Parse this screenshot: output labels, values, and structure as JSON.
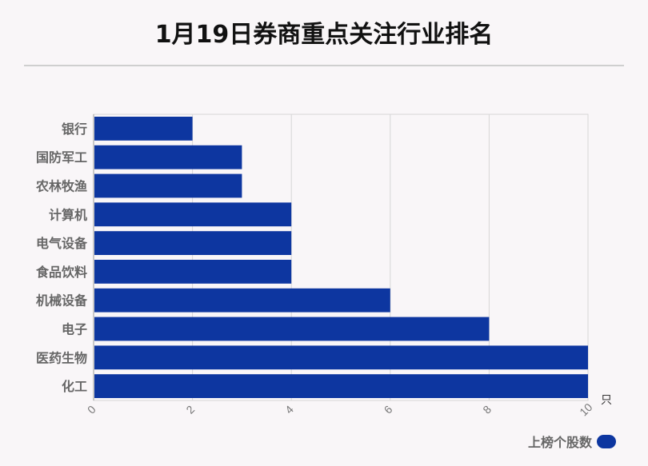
{
  "title": "1月19日券商重点关注行业排名",
  "chart_data": {
    "type": "bar",
    "orientation": "horizontal",
    "categories": [
      "银行",
      "国防军工",
      "农林牧渔",
      "计算机",
      "电气设备",
      "食品饮料",
      "机械设备",
      "电子",
      "医药生物",
      "化工"
    ],
    "series": [
      {
        "name": "上榜个股数",
        "values": [
          2,
          3,
          3,
          4,
          4,
          4,
          6,
          8,
          10,
          10
        ]
      }
    ],
    "xlim": [
      0,
      10
    ],
    "xticks": [
      "0",
      "2",
      "4",
      "6",
      "8",
      "10"
    ],
    "unit": "只",
    "grid": true,
    "legend_position": "bottom-right",
    "bar_color": "#0d36a0"
  }
}
